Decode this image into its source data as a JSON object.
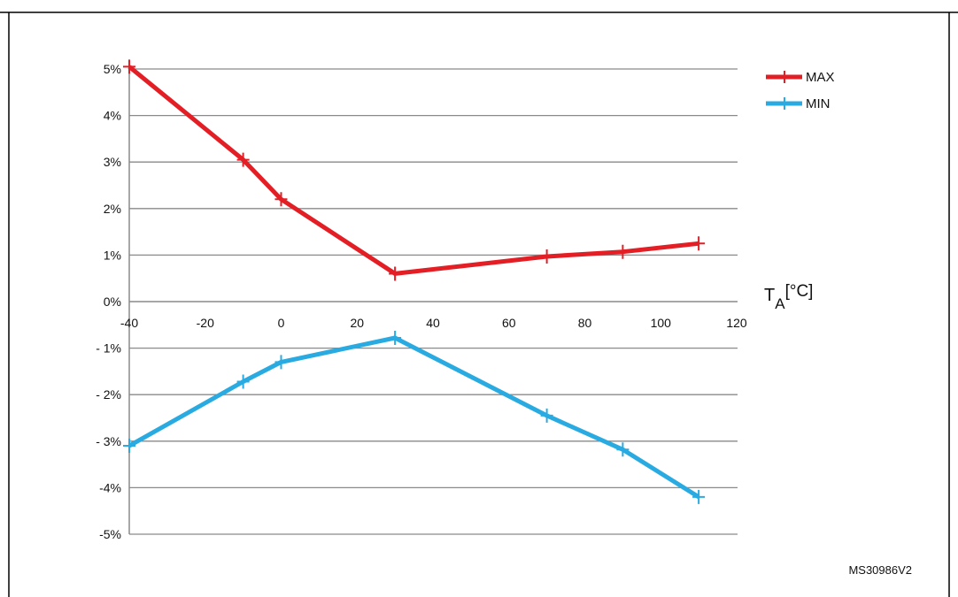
{
  "chart_data": {
    "type": "line",
    "xlabel": "T",
    "xlabel_sub": "A",
    "xlabel_unit": "[°C]",
    "xlim": [
      -40,
      120
    ],
    "ylim": [
      -5,
      5
    ],
    "x_ticks": [
      -40,
      -20,
      0,
      20,
      40,
      60,
      80,
      100,
      120
    ],
    "x_tick_labels": [
      "-40",
      "-20",
      "0",
      "20",
      "40",
      "60",
      "80",
      "100",
      "120"
    ],
    "y_ticks": [
      5,
      4,
      3,
      2,
      1,
      0,
      -1,
      -2,
      -3,
      -4,
      -5
    ],
    "y_tick_labels": [
      "5%",
      "4%",
      "3%",
      "2%",
      "1%",
      "0%",
      "- 1%",
      "- 2%",
      "- 3%",
      "-4%",
      "-5%"
    ],
    "grid": "horizontal",
    "legend_position": "top-right",
    "series": [
      {
        "name": "MAX",
        "color": "#e31e24",
        "x": [
          -40,
          -10,
          0,
          30,
          70,
          90,
          110
        ],
        "y": [
          5.05,
          3.05,
          2.2,
          0.6,
          0.97,
          1.07,
          1.25
        ]
      },
      {
        "name": "MIN",
        "color": "#29abe2",
        "x": [
          -40,
          -10,
          0,
          30,
          70,
          90,
          110
        ],
        "y": [
          -3.1,
          -1.72,
          -1.3,
          -0.78,
          -2.45,
          -3.18,
          -4.2
        ]
      }
    ]
  },
  "figure_id": "MS30986V2"
}
